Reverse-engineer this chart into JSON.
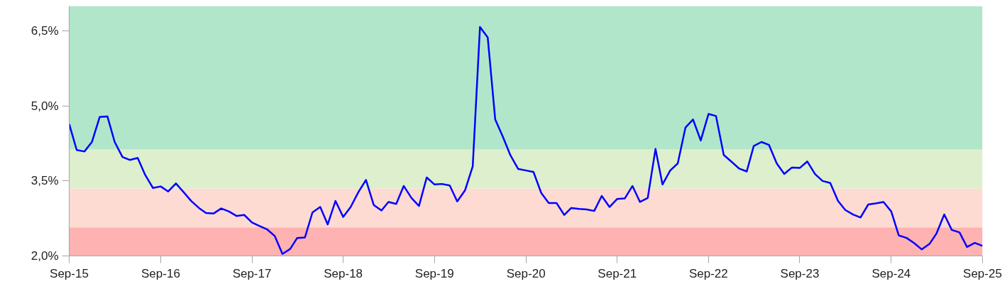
{
  "chart_data": {
    "type": "line",
    "x": [
      "2015-09",
      "2015-10",
      "2015-11",
      "2015-12",
      "2016-01",
      "2016-02",
      "2016-03",
      "2016-04",
      "2016-05",
      "2016-06",
      "2016-07",
      "2016-08",
      "2016-09",
      "2016-10",
      "2016-11",
      "2016-12",
      "2017-01",
      "2017-02",
      "2017-03",
      "2017-04",
      "2017-05",
      "2017-06",
      "2017-07",
      "2017-08",
      "2017-09",
      "2017-10",
      "2017-11",
      "2017-12",
      "2018-01",
      "2018-02",
      "2018-03",
      "2018-04",
      "2018-05",
      "2018-06",
      "2018-07",
      "2018-08",
      "2018-09",
      "2018-10",
      "2018-11",
      "2018-12",
      "2019-01",
      "2019-02",
      "2019-03",
      "2019-04",
      "2019-05",
      "2019-06",
      "2019-07",
      "2019-08",
      "2019-09",
      "2019-10",
      "2019-11",
      "2019-12",
      "2020-01",
      "2020-02",
      "2020-03",
      "2020-04",
      "2020-05",
      "2020-06",
      "2020-07",
      "2020-08",
      "2020-09",
      "2020-10",
      "2020-11",
      "2020-12",
      "2021-01",
      "2021-02",
      "2021-03",
      "2021-04",
      "2021-05",
      "2021-06",
      "2021-07",
      "2021-08",
      "2021-09",
      "2021-10",
      "2021-11",
      "2021-12",
      "2022-01",
      "2022-02",
      "2022-03",
      "2022-04",
      "2022-05",
      "2022-06",
      "2022-07",
      "2022-08",
      "2022-09",
      "2022-10",
      "2022-11",
      "2022-12",
      "2023-01",
      "2023-02",
      "2023-03",
      "2023-04",
      "2023-05",
      "2023-06",
      "2023-07",
      "2023-08",
      "2023-09",
      "2023-10",
      "2023-11",
      "2023-12",
      "2024-01",
      "2024-02",
      "2024-03",
      "2024-04",
      "2024-05",
      "2024-06",
      "2024-07",
      "2024-08",
      "2024-09",
      "2024-10",
      "2024-11",
      "2024-12",
      "2025-01",
      "2025-02",
      "2025-03",
      "2025-04",
      "2025-05",
      "2025-06",
      "2025-07",
      "2025-08",
      "2025-09"
    ],
    "series": [
      {
        "color": "#0000ff",
        "values": [
          4.64,
          4.12,
          4.09,
          4.28,
          4.78,
          4.79,
          4.28,
          3.98,
          3.92,
          3.96,
          3.62,
          3.36,
          3.39,
          3.29,
          3.45,
          3.28,
          3.1,
          2.96,
          2.86,
          2.85,
          2.95,
          2.89,
          2.8,
          2.82,
          2.67,
          2.6,
          2.53,
          2.4,
          2.04,
          2.14,
          2.36,
          2.37,
          2.87,
          2.98,
          2.63,
          3.1,
          2.78,
          2.98,
          3.28,
          3.52,
          3.02,
          2.91,
          3.08,
          3.04,
          3.4,
          3.16,
          3.0,
          3.57,
          3.43,
          3.44,
          3.41,
          3.09,
          3.31,
          3.79,
          6.58,
          6.37,
          4.73,
          4.38,
          4.01,
          3.74,
          3.71,
          3.68,
          3.26,
          3.06,
          3.06,
          2.82,
          2.96,
          2.94,
          2.93,
          2.9,
          3.2,
          2.98,
          3.14,
          3.15,
          3.4,
          3.08,
          3.16,
          4.14,
          3.43,
          3.71,
          3.85,
          4.57,
          4.73,
          4.31,
          4.84,
          4.8,
          4.02,
          3.89,
          3.75,
          3.69,
          4.2,
          4.28,
          4.22,
          3.85,
          3.64,
          3.77,
          3.76,
          3.89,
          3.64,
          3.5,
          3.46,
          3.1,
          2.92,
          2.83,
          2.77,
          3.03,
          3.05,
          3.08,
          2.89,
          2.41,
          2.36,
          2.26,
          2.13,
          2.24,
          2.45,
          2.83,
          2.52,
          2.47,
          2.18,
          2.26,
          2.2
        ]
      }
    ],
    "xlim": [
      "2015-09",
      "2025-09"
    ],
    "xticks": [
      {
        "value": "2015-09",
        "label": "Sep-15"
      },
      {
        "value": "2016-09",
        "label": "Sep-16"
      },
      {
        "value": "2017-09",
        "label": "Sep-17"
      },
      {
        "value": "2018-09",
        "label": "Sep-18"
      },
      {
        "value": "2019-09",
        "label": "Sep-19"
      },
      {
        "value": "2020-09",
        "label": "Sep-20"
      },
      {
        "value": "2021-09",
        "label": "Sep-21"
      },
      {
        "value": "2022-09",
        "label": "Sep-22"
      },
      {
        "value": "2023-09",
        "label": "Sep-23"
      },
      {
        "value": "2024-09",
        "label": "Sep-24"
      },
      {
        "value": "2025-09",
        "label": "Sep-25"
      }
    ],
    "ylim": [
      2,
      7
    ],
    "yticks": [
      {
        "value": 2,
        "label": "2,0%"
      },
      {
        "value": 3.5,
        "label": "3,5%"
      },
      {
        "value": 5,
        "label": "5,0%"
      },
      {
        "value": 6.5,
        "label": "6,5%"
      }
    ],
    "bands": [
      {
        "axis": "y",
        "from": 2,
        "to": 2.57,
        "color": "#ffb2b2"
      },
      {
        "axis": "y",
        "from": 2.57,
        "to": 3.35,
        "color": "#fddbd2"
      },
      {
        "axis": "y",
        "from": 3.35,
        "to": 4.13,
        "color": "#ddefcc"
      },
      {
        "axis": "y",
        "from": 4.13,
        "to": 7,
        "color": "#b2e6ca"
      }
    ],
    "grid": false,
    "marker": "none",
    "line_style": "solid"
  }
}
